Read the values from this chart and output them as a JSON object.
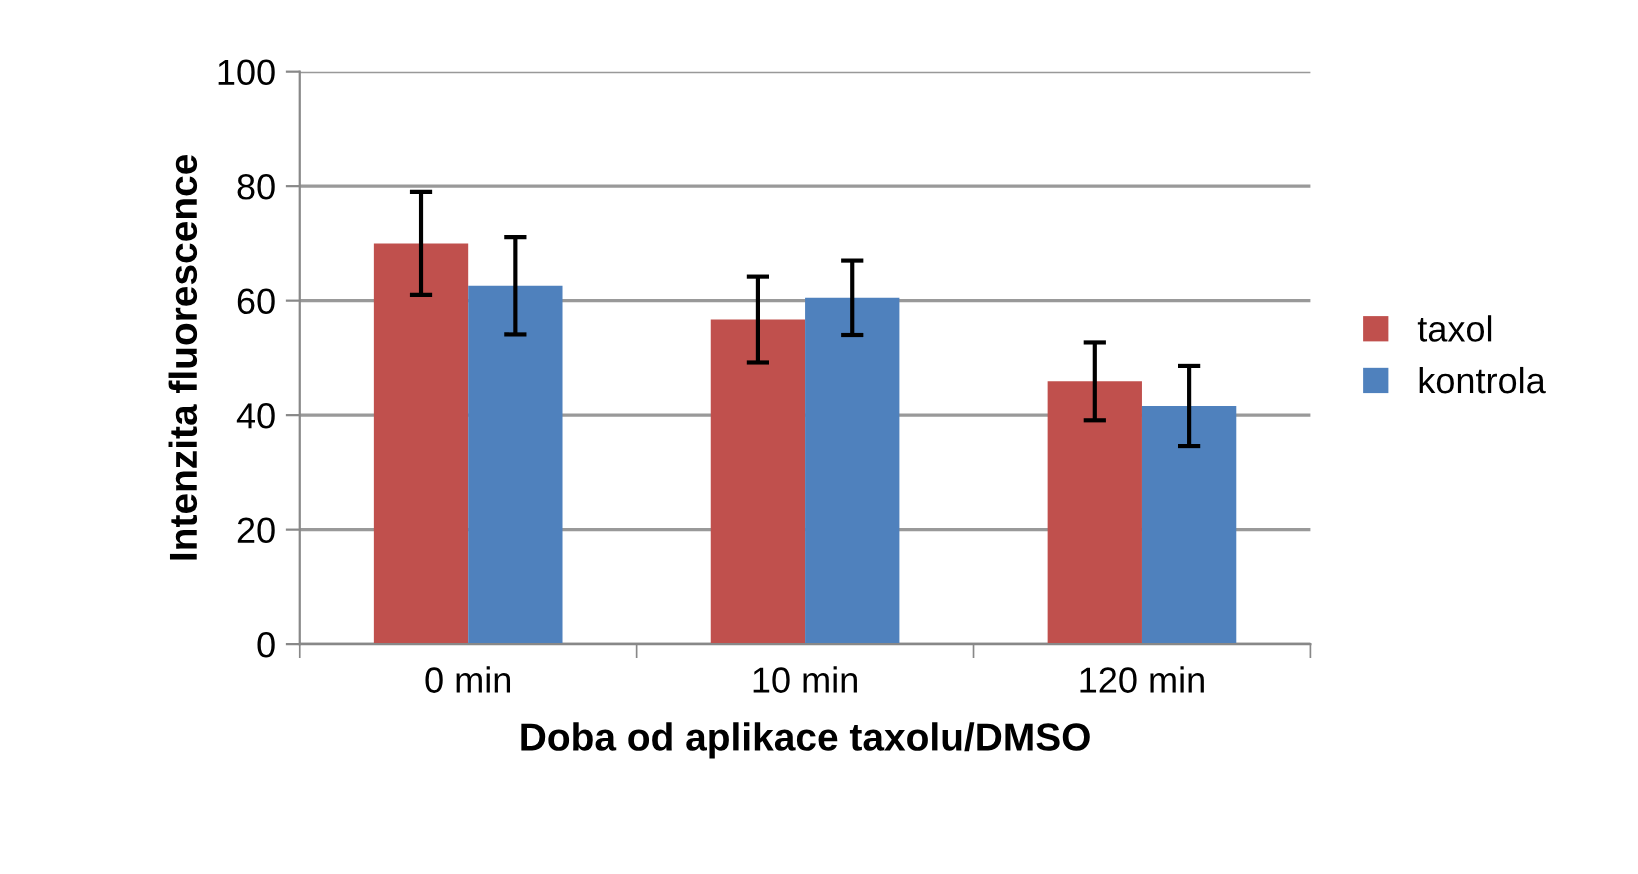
{
  "chart_data": {
    "type": "bar",
    "xlabel": "Doba od aplikace taxolu/DMSO",
    "ylabel": "Intenzita fluorescence",
    "categories": [
      "0 min",
      "10 min",
      "120 min"
    ],
    "series": [
      {
        "name": "taxol",
        "color": "#c0504d",
        "values": [
          70.0,
          56.7,
          45.9
        ],
        "errors": [
          9.0,
          7.5,
          6.8
        ]
      },
      {
        "name": "kontrola",
        "color": "#4f81bd",
        "values": [
          62.6,
          60.5,
          41.6
        ],
        "errors": [
          8.5,
          6.5,
          7.0
        ]
      }
    ],
    "ylim": [
      0,
      100
    ],
    "yticks": [
      0,
      20,
      40,
      60,
      80,
      100
    ],
    "grid": "y",
    "legend": "right"
  }
}
